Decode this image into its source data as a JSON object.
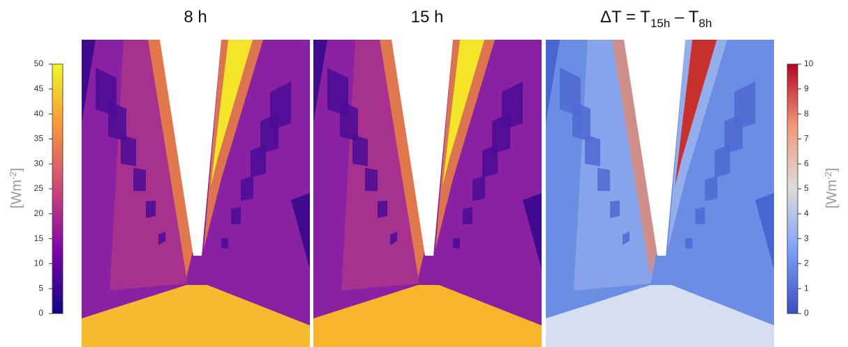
{
  "panels": [
    {
      "title": "8 h"
    },
    {
      "title": "15 h"
    },
    {
      "title": {
        "main": "ΔT = T",
        "sub1": "15h",
        "mid": " – T",
        "sub2": "8h"
      }
    }
  ],
  "colorbars": [
    {
      "label": {
        "main": "[Wm",
        "sup": "-2",
        "end": "]"
      },
      "lim": [
        0,
        50
      ],
      "ticks": [
        0,
        5,
        10,
        15,
        20,
        25,
        30,
        35,
        40,
        45,
        50
      ],
      "colormap": "plasma"
    },
    {
      "label": {
        "main": "[Wm",
        "sup": "-2",
        "end": "]"
      },
      "lim": [
        0,
        10
      ],
      "ticks": [
        0,
        1,
        2,
        3,
        4,
        5,
        6,
        7,
        8,
        9,
        10
      ],
      "colormap": "coolwarm"
    }
  ]
}
